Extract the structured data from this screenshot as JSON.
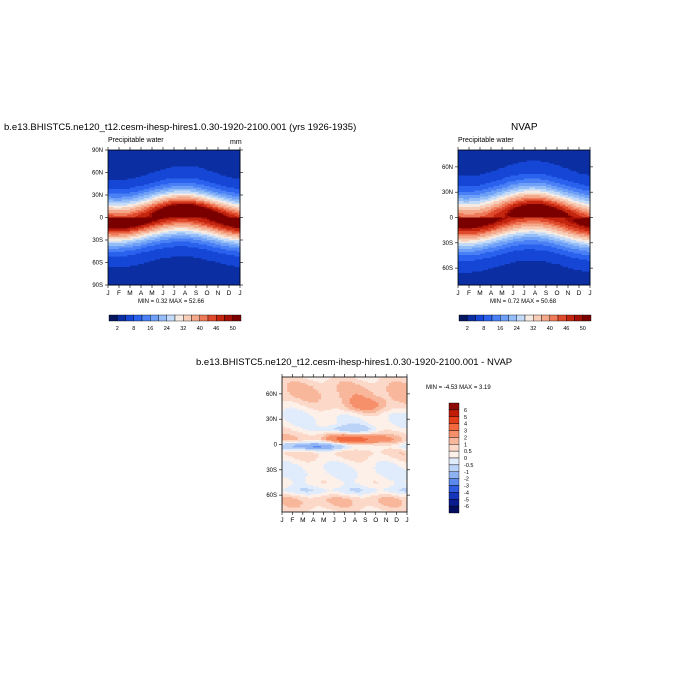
{
  "chart_data": [
    {
      "type": "heatmap",
      "id": "model",
      "title": "b.e13.BHISTC5.ne120_t12.cesm-ihesp-hires1.0.30-1920-2100.001 (yrs 1926-1935)",
      "left_label": "Precipitable water",
      "units": "mm",
      "x_ticks": [
        "J",
        "F",
        "M",
        "A",
        "M",
        "J",
        "J",
        "A",
        "S",
        "O",
        "N",
        "D",
        "J"
      ],
      "y_ticks": [
        "90N",
        "60N",
        "30N",
        "0",
        "30S",
        "60S",
        "90S"
      ],
      "ylim": [
        -90,
        90
      ],
      "stats": "MIN =   0.32 MAX =  52.66",
      "min": 0.32,
      "max": 52.66,
      "colorbar_levels": [
        2,
        4,
        8,
        12,
        16,
        20,
        24,
        28,
        32,
        36,
        40,
        43,
        46,
        49,
        50,
        52
      ],
      "colorbar_labels": [
        "2",
        "8",
        "16",
        "24",
        "32",
        "40",
        "46",
        "50"
      ]
    },
    {
      "type": "heatmap",
      "id": "obs",
      "title": "NVAP",
      "left_label": "Precipitable water",
      "x_ticks": [
        "J",
        "F",
        "M",
        "A",
        "M",
        "J",
        "J",
        "A",
        "S",
        "O",
        "N",
        "D",
        "J"
      ],
      "y_ticks": [
        "60N",
        "30N",
        "0",
        "30S",
        "60S"
      ],
      "ylim": [
        -80,
        80
      ],
      "stats": "MIN =   0.72 MAX =  50.68",
      "min": 0.72,
      "max": 50.68,
      "colorbar_levels": [
        2,
        4,
        8,
        12,
        16,
        20,
        24,
        28,
        32,
        36,
        40,
        43,
        46,
        49,
        50,
        52
      ],
      "colorbar_labels": [
        "2",
        "8",
        "16",
        "24",
        "32",
        "40",
        "46",
        "50"
      ]
    },
    {
      "type": "heatmap",
      "id": "diff",
      "title": "b.e13.BHISTC5.ne120_t12.cesm-ihesp-hires1.0.30-1920-2100.001 - NVAP",
      "x_ticks": [
        "J",
        "F",
        "M",
        "A",
        "M",
        "J",
        "J",
        "A",
        "S",
        "O",
        "N",
        "D",
        "J"
      ],
      "y_ticks": [
        "60N",
        "30N",
        "0",
        "30S",
        "60S"
      ],
      "ylim": [
        -80,
        80
      ],
      "stats": "MIN =  -4.53 MAX =   3.19",
      "min": -4.53,
      "max": 3.19,
      "colorbar_labels": [
        "6",
        "5",
        "4",
        "3",
        "2",
        "1",
        "0.5",
        "0",
        "-0.5",
        "-1",
        "-2",
        "-3",
        "-4",
        "-5",
        "-6"
      ]
    }
  ],
  "colors": {
    "pw_palette": [
      "#06175f",
      "#0b2fa3",
      "#1546d6",
      "#2a62ee",
      "#4a80f5",
      "#6fa0f7",
      "#95bdf8",
      "#c3daf9",
      "#f6ebe2",
      "#f7cdb8",
      "#f4a889",
      "#ee7a5a",
      "#e04a2c",
      "#c4250f",
      "#a30f05",
      "#7a0000"
    ],
    "diff_palette": [
      "#8b0a05",
      "#c01c08",
      "#e43d1a",
      "#f2683f",
      "#f5906b",
      "#f8b69b",
      "#fbd8c8",
      "#fdf0e8",
      "#e0ecfb",
      "#bcd3f8",
      "#8fb2f3",
      "#5b88ec",
      "#2e5bdf",
      "#1536b8",
      "#071a8e",
      "#020c5c"
    ]
  }
}
